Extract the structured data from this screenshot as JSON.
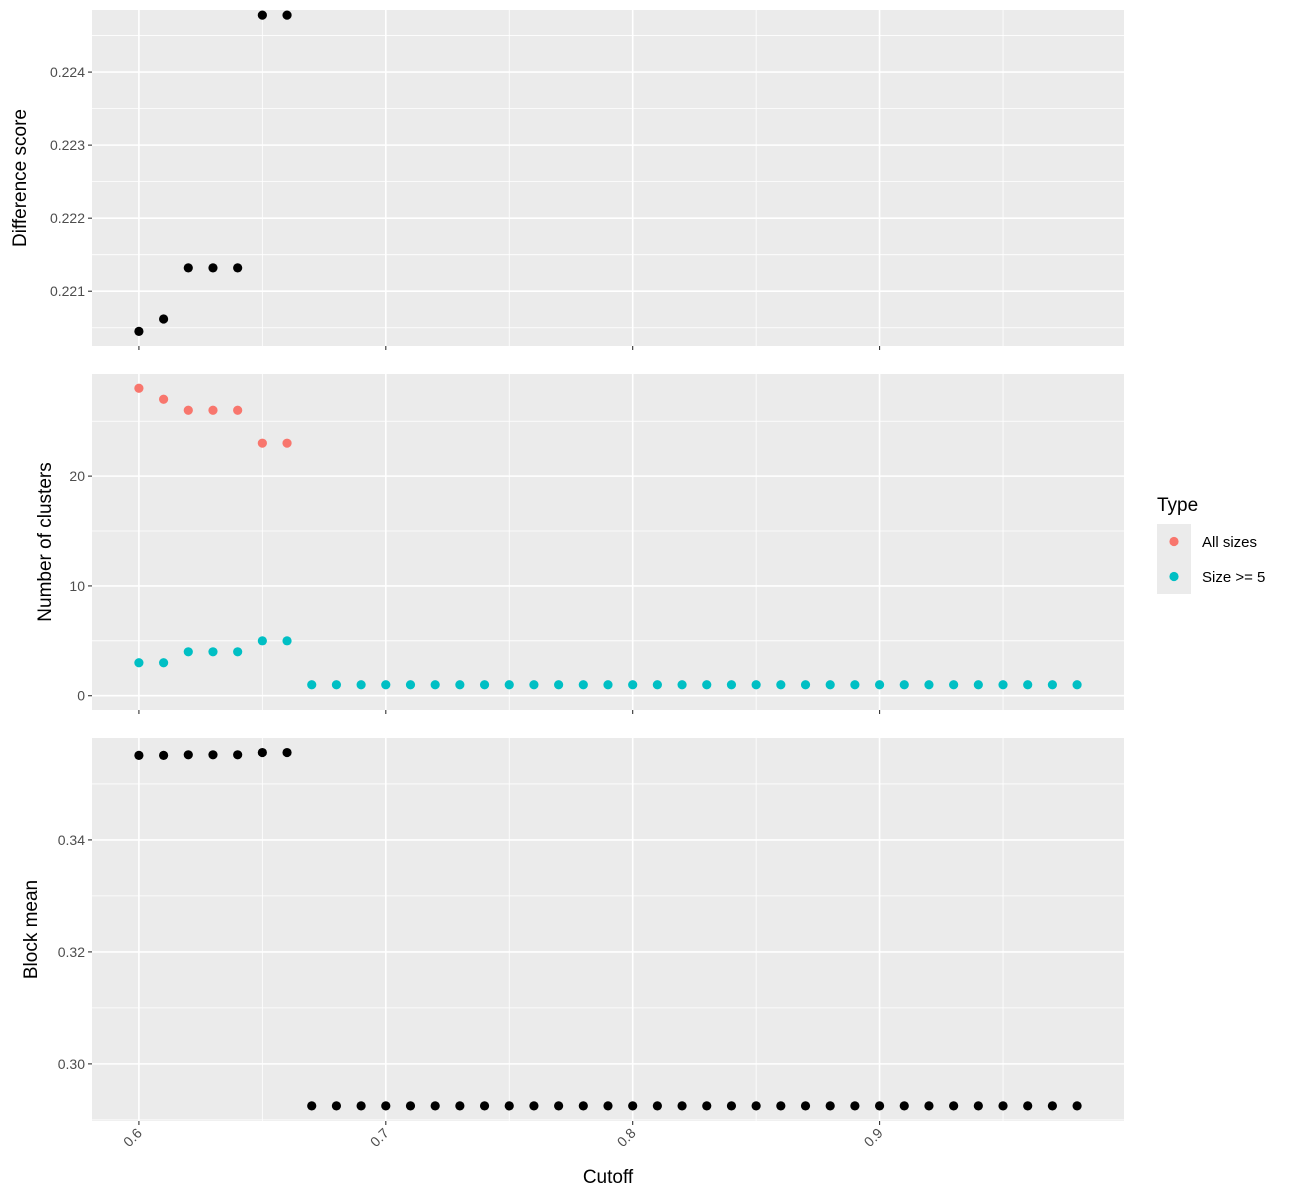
{
  "chart_data": {
    "type": "scatter",
    "xlabel": "Cutoff",
    "x_ticks": [
      0.6,
      0.7,
      0.8,
      0.9
    ],
    "x_tick_labels": [
      "0.6",
      "0.7",
      "0.8",
      "0.9"
    ],
    "xlim": [
      0.581,
      0.999
    ],
    "grid": true,
    "legend": {
      "title": "Type",
      "placement": "right",
      "entries": [
        {
          "name": "All sizes",
          "color": "#F8766D"
        },
        {
          "name": "Size >= 5",
          "color": "#00BFC4"
        }
      ]
    },
    "panels": [
      {
        "id": "difference",
        "ylabel": "Difference score",
        "ylim": [
          220.25,
          224.85
        ],
        "y_ticks": [
          221,
          222,
          223,
          224
        ],
        "y_tick_labels": [
          "0.221",
          "0.222",
          "0.223",
          "0.224"
        ],
        "series": [
          {
            "color": "#000000",
            "x": [
              0.6,
              0.61,
              0.62,
              0.63,
              0.64,
              0.65,
              0.66
            ],
            "y": [
              220.45,
              220.62,
              221.32,
              221.32,
              221.32,
              224.78,
              224.78
            ]
          }
        ]
      },
      {
        "id": "clusters",
        "ylabel": "Number of clusters",
        "ylim": [
          -1.3,
          29.3
        ],
        "y_ticks": [
          0,
          10,
          20
        ],
        "y_tick_labels": [
          "0",
          "10",
          "20"
        ],
        "series": [
          {
            "name": "All sizes",
            "color": "#F8766D",
            "x": [
              0.6,
              0.61,
              0.62,
              0.63,
              0.64,
              0.65,
              0.66
            ],
            "y": [
              28,
              27,
              26,
              26,
              26,
              23,
              23
            ]
          },
          {
            "name": "Size >= 5",
            "color": "#00BFC4",
            "x": [
              0.6,
              0.61,
              0.62,
              0.63,
              0.64,
              0.65,
              0.66,
              0.67,
              0.68,
              0.69,
              0.7,
              0.71,
              0.72,
              0.73,
              0.74,
              0.75,
              0.76,
              0.77,
              0.78,
              0.79,
              0.8,
              0.81,
              0.82,
              0.83,
              0.84,
              0.85,
              0.86,
              0.87,
              0.88,
              0.89,
              0.9,
              0.91,
              0.92,
              0.93,
              0.94,
              0.95,
              0.96,
              0.97,
              0.98
            ],
            "y": [
              3,
              3,
              4,
              4,
              4,
              5,
              5,
              1,
              1,
              1,
              1,
              1,
              1,
              1,
              1,
              1,
              1,
              1,
              1,
              1,
              1,
              1,
              1,
              1,
              1,
              1,
              1,
              1,
              1,
              1,
              1,
              1,
              1,
              1,
              1,
              1,
              1,
              1,
              1
            ]
          }
        ]
      },
      {
        "id": "block",
        "ylabel": "Block mean",
        "ylim": [
          0.2898,
          0.3582
        ],
        "y_ticks": [
          0.3,
          0.32,
          0.34
        ],
        "y_tick_labels": [
          "0.30",
          "0.32",
          "0.34"
        ],
        "series": [
          {
            "color": "#000000",
            "x": [
              0.6,
              0.61,
              0.62,
              0.63,
              0.64,
              0.65,
              0.66,
              0.67,
              0.68,
              0.69,
              0.7,
              0.71,
              0.72,
              0.73,
              0.74,
              0.75,
              0.76,
              0.77,
              0.78,
              0.79,
              0.8,
              0.81,
              0.82,
              0.83,
              0.84,
              0.85,
              0.86,
              0.87,
              0.88,
              0.89,
              0.9,
              0.91,
              0.92,
              0.93,
              0.94,
              0.95,
              0.96,
              0.97,
              0.98
            ],
            "y": [
              0.3551,
              0.3551,
              0.3552,
              0.3552,
              0.3552,
              0.3556,
              0.3556,
              0.2925,
              0.2925,
              0.2925,
              0.2925,
              0.2925,
              0.2925,
              0.2925,
              0.2925,
              0.2925,
              0.2925,
              0.2925,
              0.2925,
              0.2925,
              0.2925,
              0.2925,
              0.2925,
              0.2925,
              0.2925,
              0.2925,
              0.2925,
              0.2925,
              0.2925,
              0.2925,
              0.2925,
              0.2925,
              0.2925,
              0.2925,
              0.2925,
              0.2925,
              0.2925,
              0.2925,
              0.2925
            ]
          }
        ]
      }
    ]
  }
}
